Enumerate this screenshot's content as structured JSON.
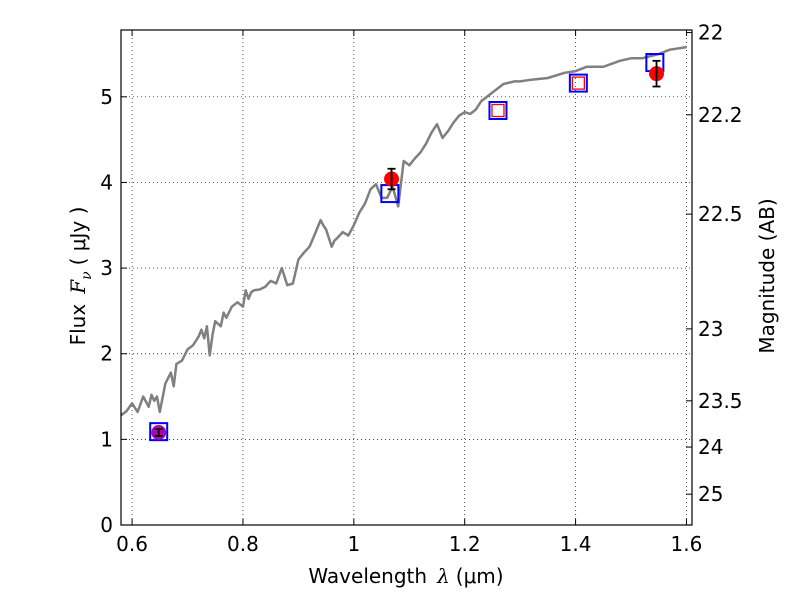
{
  "chart_data": {
    "type": "line",
    "xlabel_text": "Wavelength",
    "xlabel_symbol": "λ",
    "xlabel_unit": "(μm)",
    "ylabel_text": "Flux",
    "ylabel_symbol": "F",
    "ylabel_symbol_sub": "ν",
    "ylabel_unit": "( μJy )",
    "y2label": "Magnitude (AB)",
    "xlim": [
      0.58,
      1.61
    ],
    "ylim": [
      0,
      5.78
    ],
    "grid": true,
    "x_ticks": [
      0.6,
      0.8,
      1.0,
      1.2,
      1.4,
      1.6
    ],
    "x_tick_labels": [
      "0.6",
      "0.8",
      "1",
      "1.2",
      "1.4",
      "1.6"
    ],
    "y_ticks": [
      0,
      1,
      2,
      3,
      4,
      5
    ],
    "y_tick_labels": [
      "0",
      "1",
      "2",
      "3",
      "4",
      "5"
    ],
    "y2_ticks": [
      {
        "label": "22",
        "flux": 5.75
      },
      {
        "label": "22.2",
        "flux": 4.79
      },
      {
        "label": "22.5",
        "flux": 3.63
      },
      {
        "label": "23",
        "flux": 2.29
      },
      {
        "label": "23.5",
        "flux": 1.45
      },
      {
        "label": "24",
        "flux": 0.91
      },
      {
        "label": "25",
        "flux": 0.36
      }
    ],
    "series": [
      {
        "kind": "line",
        "color": "#808080",
        "x": [
          0.58,
          0.59,
          0.6,
          0.61,
          0.62,
          0.63,
          0.635,
          0.64,
          0.645,
          0.65,
          0.66,
          0.67,
          0.675,
          0.68,
          0.69,
          0.7,
          0.71,
          0.72,
          0.725,
          0.73,
          0.735,
          0.74,
          0.745,
          0.75,
          0.76,
          0.765,
          0.77,
          0.78,
          0.79,
          0.8,
          0.805,
          0.81,
          0.815,
          0.82,
          0.83,
          0.84,
          0.85,
          0.86,
          0.87,
          0.88,
          0.89,
          0.9,
          0.91,
          0.92,
          0.93,
          0.94,
          0.945,
          0.95,
          0.96,
          0.965,
          0.97,
          0.98,
          0.99,
          1.0,
          1.01,
          1.02,
          1.03,
          1.04,
          1.05,
          1.06,
          1.07,
          1.08,
          1.09,
          1.1,
          1.11,
          1.12,
          1.13,
          1.14,
          1.15,
          1.16,
          1.17,
          1.18,
          1.19,
          1.2,
          1.21,
          1.22,
          1.23,
          1.25,
          1.27,
          1.29,
          1.3,
          1.32,
          1.35,
          1.38,
          1.4,
          1.42,
          1.45,
          1.48,
          1.5,
          1.52,
          1.55,
          1.57,
          1.6
        ],
        "y": [
          1.28,
          1.33,
          1.42,
          1.32,
          1.5,
          1.38,
          1.52,
          1.45,
          1.5,
          1.32,
          1.65,
          1.78,
          1.62,
          1.88,
          1.92,
          2.05,
          2.1,
          2.2,
          2.28,
          2.18,
          2.32,
          1.98,
          2.22,
          2.38,
          2.32,
          2.48,
          2.42,
          2.55,
          2.6,
          2.55,
          2.74,
          2.64,
          2.72,
          2.74,
          2.75,
          2.78,
          2.85,
          2.82,
          3.0,
          2.8,
          2.82,
          3.1,
          3.18,
          3.25,
          3.4,
          3.56,
          3.5,
          3.45,
          3.25,
          3.32,
          3.35,
          3.42,
          3.38,
          3.5,
          3.65,
          3.75,
          3.92,
          3.98,
          3.82,
          3.82,
          3.95,
          3.72,
          4.25,
          4.2,
          4.28,
          4.35,
          4.45,
          4.58,
          4.68,
          4.52,
          4.6,
          4.7,
          4.78,
          4.82,
          4.8,
          4.85,
          4.95,
          5.05,
          5.15,
          5.18,
          5.18,
          5.2,
          5.22,
          5.28,
          5.3,
          5.35,
          5.35,
          5.42,
          5.45,
          5.45,
          5.5,
          5.55,
          5.58
        ]
      },
      {
        "kind": "open-square",
        "color": "#0000ff",
        "x": [
          0.648,
          1.065,
          1.26,
          1.405,
          1.543
        ],
        "y": [
          1.09,
          3.87,
          4.84,
          5.16,
          5.4
        ]
      },
      {
        "kind": "open-square-small",
        "color": "#ff0000",
        "x": [
          1.26,
          1.405
        ],
        "y": [
          4.84,
          5.16
        ]
      },
      {
        "kind": "filled-circle",
        "color": "#ff0000",
        "x": [
          1.068,
          1.546
        ],
        "y": [
          4.04,
          5.27
        ],
        "yerr": [
          0.12,
          0.15
        ]
      },
      {
        "kind": "filled-circle",
        "color": "#b000b0",
        "x": [
          0.648
        ],
        "y": [
          1.08
        ],
        "yerr": [
          0.04
        ]
      }
    ]
  }
}
